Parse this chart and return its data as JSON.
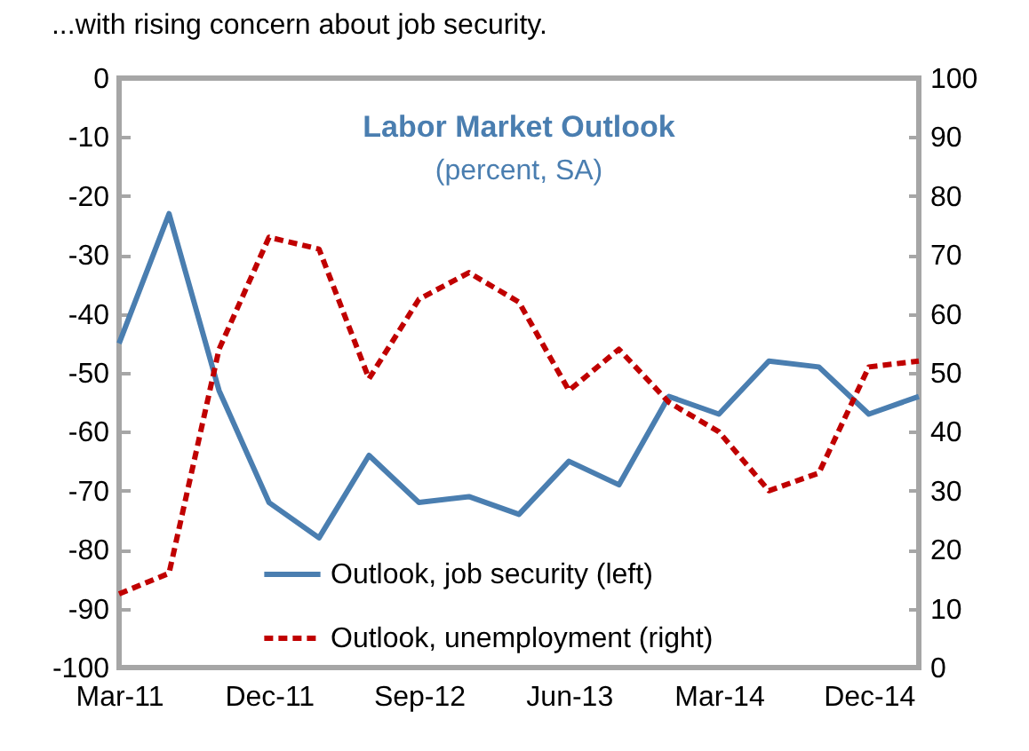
{
  "chart_data": {
    "type": "line",
    "title": "...with rising concern about job security.",
    "annotations": [
      "Labor Market Outlook",
      "(percent, SA)"
    ],
    "categories": [
      "Mar-11",
      null,
      null,
      "Dec-11",
      null,
      null,
      "Sep-12",
      null,
      null,
      "Jun-13",
      null,
      null,
      "Mar-14",
      null,
      null,
      "Dec-14",
      null
    ],
    "series": [
      {
        "name": "Outlook, job security (left)",
        "color": "#4a7eb0",
        "line_style": "solid",
        "values": [
          -45,
          -23,
          -53,
          -72,
          -78,
          -64,
          -72,
          -71,
          -74,
          -65,
          -69,
          -54,
          -57,
          -48,
          -49,
          -57,
          -54
        ]
      },
      {
        "name": "Outlook, unemployment (right)",
        "color": "#c00000",
        "line_style": "dashed",
        "axis": "y2",
        "values": [
          12.5,
          16,
          54,
          73,
          71,
          49,
          62.5,
          67,
          62,
          47,
          54,
          45,
          40,
          30,
          33,
          51,
          52
        ]
      }
    ],
    "ylim": [
      -100,
      0
    ],
    "yticks": [
      -100,
      -90,
      -80,
      -70,
      -60,
      -50,
      -40,
      -30,
      -20,
      -10,
      0
    ],
    "y2lim": [
      0,
      100
    ],
    "y2ticks": [
      0,
      10,
      20,
      30,
      40,
      50,
      60,
      70,
      80,
      90,
      100
    ],
    "legend": "bottom",
    "grid": false,
    "marker": "none"
  }
}
